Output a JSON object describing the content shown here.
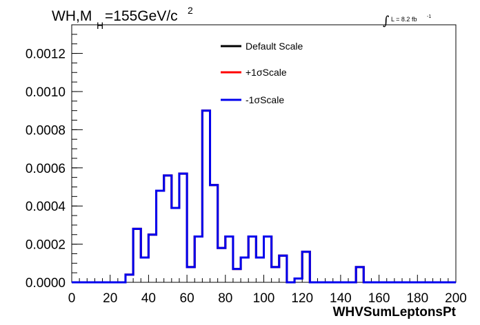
{
  "chart_data": {
    "type": "line",
    "title_main": "WH,M",
    "title_sub": "H",
    "title_rest": "=155GeV/c",
    "title_sup": "2",
    "lumi_main": "L = 8.2 fb",
    "lumi_sup": "-1",
    "xlabel": "WHVSumLeptonsPt",
    "ylabel": "",
    "xlim": [
      0,
      200
    ],
    "ylim": [
      0,
      0.00135
    ],
    "x_ticks": [
      0,
      20,
      40,
      60,
      80,
      100,
      120,
      140,
      160,
      180,
      200
    ],
    "x_tick_labels": [
      "0",
      "20",
      "40",
      "60",
      "80",
      "100",
      "120",
      "140",
      "160",
      "180",
      "200"
    ],
    "y_ticks": [
      0,
      0.0002,
      0.0004,
      0.0006,
      0.0008,
      0.001,
      0.0012
    ],
    "y_tick_labels": [
      "0.0000",
      "0.0002",
      "0.0004",
      "0.0006",
      "0.0008",
      "0.0010",
      "0.0012"
    ],
    "bin_edges": [
      0,
      4,
      8,
      12,
      16,
      20,
      24,
      28,
      32,
      36,
      40,
      44,
      48,
      52,
      56,
      60,
      64,
      68,
      72,
      76,
      80,
      84,
      88,
      92,
      96,
      100,
      104,
      108,
      112,
      116,
      120,
      124,
      128,
      132,
      136,
      140,
      144,
      148,
      152,
      156,
      160,
      164,
      168,
      172,
      176,
      180,
      184,
      188,
      192,
      196,
      200
    ],
    "series": [
      {
        "name": "Default Scale",
        "color": "#000000",
        "values": [
          0,
          0,
          0,
          0,
          0,
          0,
          0,
          4e-05,
          0.00028,
          0.00013,
          0.00025,
          0.00048,
          0.00056,
          0.00039,
          0.00057,
          8e-05,
          0.00024,
          0.0009,
          0.00051,
          0.00018,
          0.00024,
          7e-05,
          0.00013,
          0.00024,
          0.00013,
          0.00024,
          8e-05,
          0.00014,
          0.0,
          2e-05,
          0.00016,
          0,
          0,
          0,
          0,
          0,
          0,
          8e-05,
          0,
          0,
          0,
          0,
          0,
          0,
          0,
          0,
          0,
          0,
          0,
          0
        ]
      },
      {
        "name": "+1σScale",
        "color": "#ff0000",
        "values": [
          0,
          0,
          0,
          0,
          0,
          0,
          0,
          4e-05,
          0.00028,
          0.00013,
          0.00025,
          0.00048,
          0.00056,
          0.00039,
          0.00057,
          8e-05,
          0.00024,
          0.0009,
          0.00051,
          0.00018,
          0.00024,
          7e-05,
          0.00013,
          0.00024,
          0.00013,
          0.00024,
          8e-05,
          0.00014,
          0.0,
          2e-05,
          0.00016,
          0,
          0,
          0,
          0,
          0,
          0,
          8e-05,
          0,
          0,
          0,
          0,
          0,
          0,
          0,
          0,
          0,
          0,
          0,
          0
        ]
      },
      {
        "name": "-1σScale",
        "color": "#0000ee",
        "values": [
          0,
          0,
          0,
          0,
          0,
          0,
          0,
          4e-05,
          0.00028,
          0.00013,
          0.00025,
          0.00048,
          0.00056,
          0.00039,
          0.00057,
          8e-05,
          0.00024,
          0.0009,
          0.00051,
          0.00018,
          0.00024,
          7e-05,
          0.00013,
          0.00024,
          0.00013,
          0.00024,
          8e-05,
          0.00014,
          0.0,
          2e-05,
          0.00016,
          0,
          0,
          0,
          0,
          0,
          0,
          8e-05,
          0,
          0,
          0,
          0,
          0,
          0,
          0,
          0,
          0,
          0,
          0,
          0
        ]
      }
    ],
    "legend_position": "top-center",
    "grid": false
  }
}
